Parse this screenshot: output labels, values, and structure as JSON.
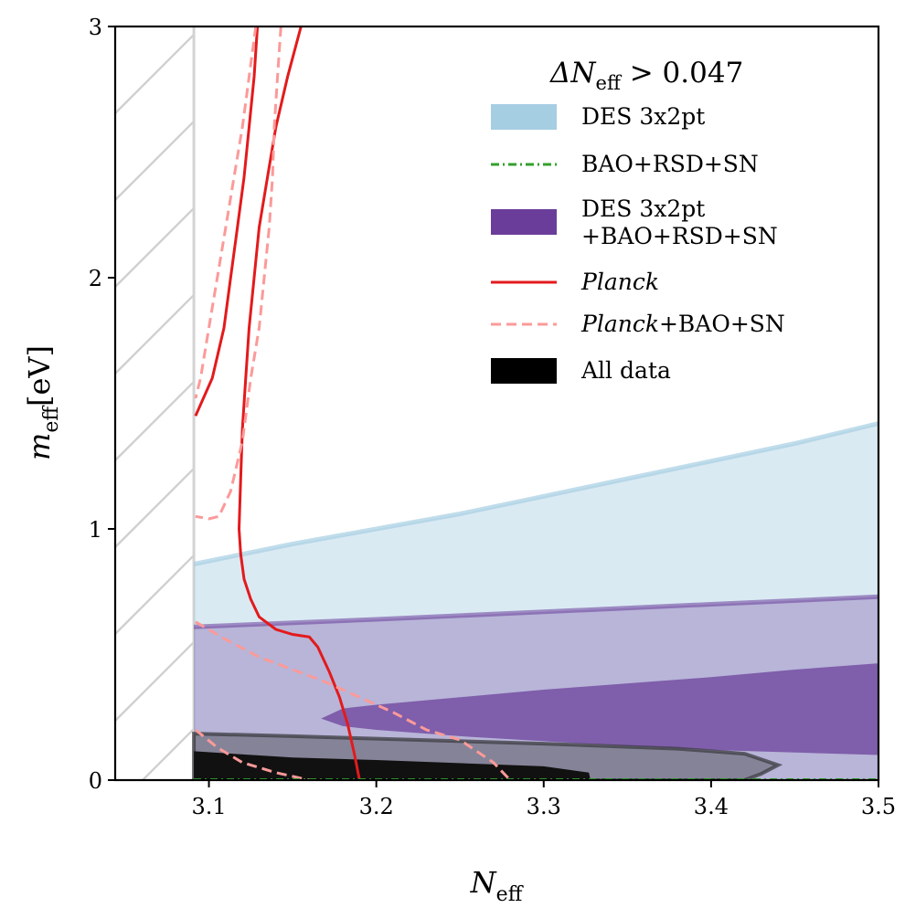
{
  "chart_data": {
    "type": "area",
    "xlim": [
      3.044,
      3.5
    ],
    "ylim": [
      0,
      3
    ],
    "xticks": [
      "3.1",
      "3.2",
      "3.3",
      "3.4",
      "3.5"
    ],
    "xtick_values": [
      3.1,
      3.2,
      3.3,
      3.4,
      3.5
    ],
    "yticks": [
      "0",
      "1",
      "2",
      "3"
    ],
    "ytick_values": [
      0,
      1,
      2,
      3
    ],
    "xlabel": {
      "main": "N",
      "sub": "eff"
    },
    "ylabel": {
      "main": "m",
      "sub": "eff",
      "unit": "[eV]"
    },
    "excluded_region_boundary_x": 3.091,
    "legend": {
      "placement": "top-right",
      "title": {
        "prefix": "ΔN",
        "sub": "eff",
        "suffix": " > 0.047"
      },
      "entries": [
        {
          "id": "des",
          "lines": [
            "DES 3x2pt"
          ],
          "style": "patch",
          "color": "#a6cee3"
        },
        {
          "id": "bao",
          "lines": [
            "BAO+RSD+SN"
          ],
          "style": "dashdot",
          "color": "#33a02c"
        },
        {
          "id": "desbao",
          "lines": [
            "DES 3x2pt",
            "+BAO+RSD+SN"
          ],
          "style": "patch",
          "color": "#6a3d9a"
        },
        {
          "id": "planck",
          "lines": [
            "Planck",
            ""
          ],
          "italic_first": true,
          "style": "solid",
          "color": "#e31a1c"
        },
        {
          "id": "planckbao",
          "lines": [
            "Planck",
            "+BAO+SN"
          ],
          "italic_first": true,
          "style": "dashed",
          "color": "#fb9a99"
        },
        {
          "id": "all",
          "lines": [
            "All data"
          ],
          "style": "patch",
          "color": "#000000"
        }
      ]
    },
    "series": [
      {
        "name": "DES 3x2pt",
        "kind": "filled_contour",
        "color": "#a6cee3",
        "outer_upper": [
          [
            3.091,
            0.86
          ],
          [
            3.15,
            0.94
          ],
          [
            3.2,
            1.0
          ],
          [
            3.25,
            1.06
          ],
          [
            3.3,
            1.13
          ],
          [
            3.35,
            1.2
          ],
          [
            3.4,
            1.27
          ],
          [
            3.45,
            1.34
          ],
          [
            3.5,
            1.42
          ]
        ],
        "inner_upper": [
          [
            3.091,
            0.62
          ],
          [
            3.2,
            0.65
          ],
          [
            3.3,
            0.68
          ],
          [
            3.4,
            0.71
          ],
          [
            3.5,
            0.74
          ]
        ]
      },
      {
        "name": "DES 3x2pt +BAO+RSD+SN",
        "kind": "filled_contour",
        "color": "#6a3d9a",
        "outer_upper": [
          [
            3.091,
            0.61
          ],
          [
            3.2,
            0.64
          ],
          [
            3.3,
            0.67
          ],
          [
            3.4,
            0.7
          ],
          [
            3.5,
            0.73
          ]
        ],
        "inner_upper": [
          [
            3.167,
            0.245
          ],
          [
            3.18,
            0.285
          ],
          [
            3.2,
            0.3
          ],
          [
            3.25,
            0.33
          ],
          [
            3.3,
            0.36
          ],
          [
            3.35,
            0.385
          ],
          [
            3.4,
            0.41
          ],
          [
            3.45,
            0.44
          ],
          [
            3.5,
            0.465
          ]
        ],
        "inner_lower": [
          [
            3.167,
            0.245
          ],
          [
            3.18,
            0.215
          ],
          [
            3.2,
            0.2
          ],
          [
            3.25,
            0.175
          ],
          [
            3.3,
            0.155
          ],
          [
            3.35,
            0.135
          ],
          [
            3.4,
            0.12
          ],
          [
            3.45,
            0.11
          ],
          [
            3.5,
            0.1
          ]
        ]
      },
      {
        "name": "All data",
        "kind": "filled_contour",
        "color": "#000000",
        "outer_upper": [
          [
            3.091,
            0.185
          ],
          [
            3.15,
            0.175
          ],
          [
            3.2,
            0.165
          ],
          [
            3.3,
            0.145
          ],
          [
            3.38,
            0.125
          ],
          [
            3.42,
            0.105
          ],
          [
            3.44,
            0.06
          ],
          [
            3.43,
            0.025
          ],
          [
            3.42,
            0.0
          ]
        ],
        "inner_upper": [
          [
            3.091,
            0.115
          ],
          [
            3.15,
            0.09
          ],
          [
            3.2,
            0.08
          ],
          [
            3.3,
            0.055
          ],
          [
            3.327,
            0.03
          ],
          [
            3.328,
            0.0
          ]
        ]
      },
      {
        "name": "Planck",
        "kind": "contour_line",
        "color": "#e31a1c",
        "style": "solid",
        "outer": [
          [
            3.155,
            3.0
          ],
          [
            3.147,
            2.8
          ],
          [
            3.14,
            2.6
          ],
          [
            3.135,
            2.4
          ],
          [
            3.13,
            2.2
          ],
          [
            3.127,
            2.0
          ],
          [
            3.124,
            1.8
          ],
          [
            3.122,
            1.6
          ],
          [
            3.12,
            1.4
          ],
          [
            3.119,
            1.2
          ],
          [
            3.118,
            1.0
          ],
          [
            3.119,
            0.9
          ],
          [
            3.121,
            0.8
          ],
          [
            3.125,
            0.72
          ],
          [
            3.13,
            0.65
          ],
          [
            3.14,
            0.6
          ],
          [
            3.15,
            0.58
          ],
          [
            3.16,
            0.57
          ],
          [
            3.165,
            0.53
          ],
          [
            3.172,
            0.43
          ],
          [
            3.178,
            0.33
          ],
          [
            3.183,
            0.22
          ],
          [
            3.187,
            0.1
          ],
          [
            3.19,
            0.0
          ]
        ],
        "inner": [
          [
            3.129,
            3.0
          ],
          [
            3.127,
            2.8
          ],
          [
            3.124,
            2.6
          ],
          [
            3.121,
            2.4
          ],
          [
            3.117,
            2.2
          ],
          [
            3.113,
            2.0
          ],
          [
            3.109,
            1.8
          ],
          [
            3.102,
            1.6
          ],
          [
            3.092,
            1.45
          ]
        ]
      },
      {
        "name": "Planck+BAO+SN",
        "kind": "contour_line",
        "color": "#fb9a99",
        "style": "dashed",
        "outer": [
          [
            3.143,
            3.0
          ],
          [
            3.141,
            2.8
          ],
          [
            3.139,
            2.6
          ],
          [
            3.138,
            2.4
          ],
          [
            3.136,
            2.2
          ],
          [
            3.133,
            2.0
          ],
          [
            3.13,
            1.8
          ],
          [
            3.125,
            1.6
          ],
          [
            3.12,
            1.35
          ],
          [
            3.113,
            1.15
          ],
          [
            3.106,
            1.05
          ],
          [
            3.1,
            1.04
          ],
          [
            3.092,
            1.05
          ]
        ],
        "outer_lower": [
          [
            3.092,
            0.63
          ],
          [
            3.11,
            0.56
          ],
          [
            3.13,
            0.49
          ],
          [
            3.15,
            0.44
          ],
          [
            3.17,
            0.39
          ],
          [
            3.19,
            0.33
          ],
          [
            3.21,
            0.27
          ],
          [
            3.23,
            0.2
          ],
          [
            3.25,
            0.16
          ],
          [
            3.27,
            0.07
          ],
          [
            3.28,
            0.0
          ]
        ],
        "inner": [
          [
            3.128,
            3.0
          ],
          [
            3.124,
            2.8
          ],
          [
            3.12,
            2.6
          ],
          [
            3.115,
            2.4
          ],
          [
            3.11,
            2.2
          ],
          [
            3.105,
            2.0
          ],
          [
            3.1,
            1.8
          ],
          [
            3.095,
            1.6
          ],
          [
            3.092,
            1.52
          ]
        ],
        "inner_lower": [
          [
            3.092,
            0.2
          ],
          [
            3.105,
            0.13
          ],
          [
            3.12,
            0.07
          ],
          [
            3.14,
            0.03
          ],
          [
            3.16,
            0.0
          ]
        ]
      }
    ]
  }
}
